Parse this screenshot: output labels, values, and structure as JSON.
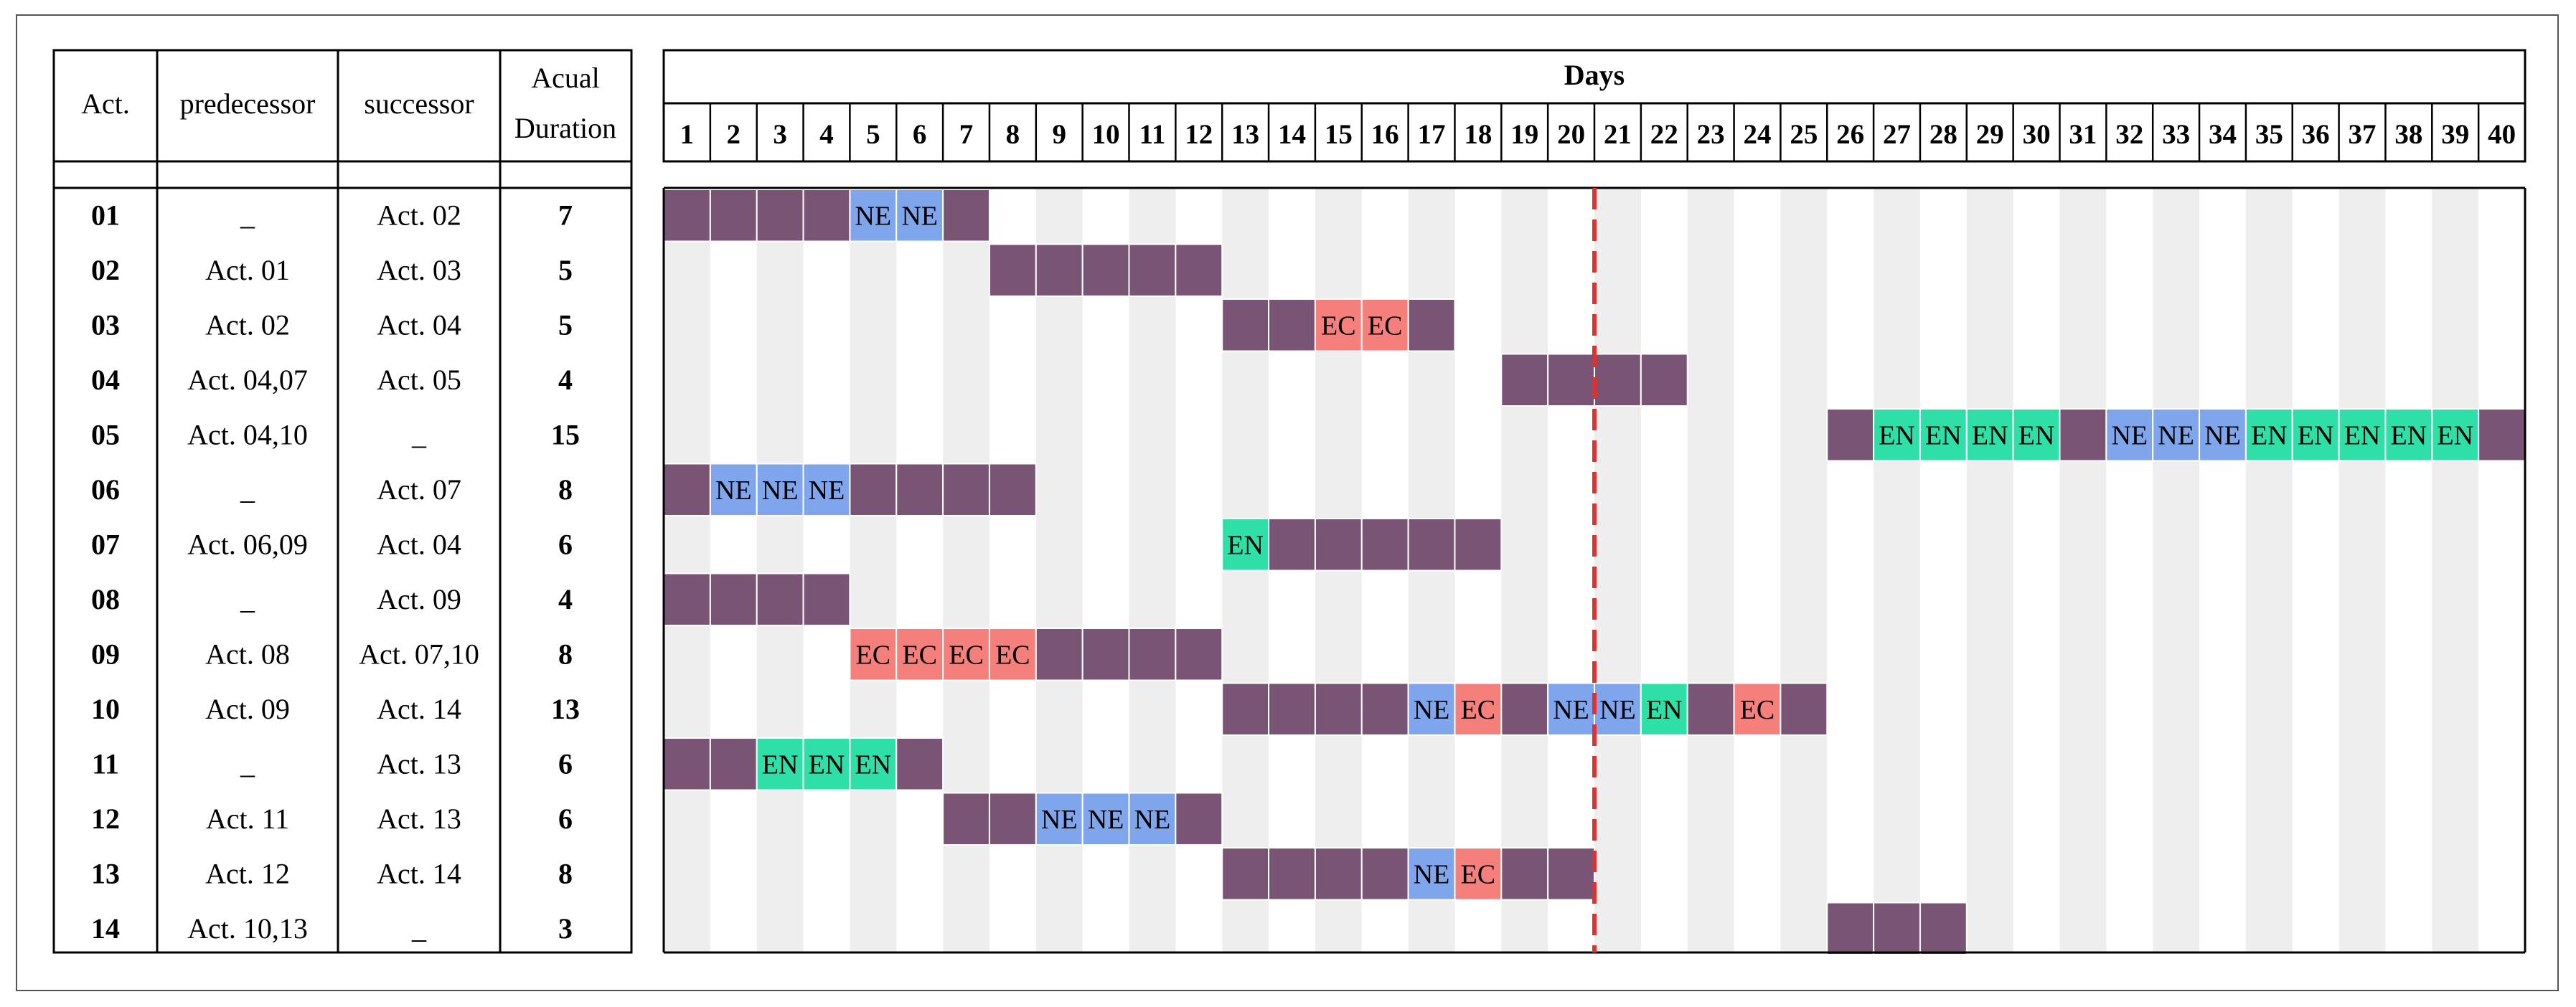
{
  "table": {
    "columns": [
      "Act.",
      "predecessor",
      "successor",
      "Acual",
      "Duration"
    ],
    "rows": [
      {
        "act": "01",
        "pred": "_",
        "succ": "Act. 02",
        "dur": "7"
      },
      {
        "act": "02",
        "pred": "Act. 01",
        "succ": "Act. 03",
        "dur": "5"
      },
      {
        "act": "03",
        "pred": "Act. 02",
        "succ": "Act. 04",
        "dur": "5"
      },
      {
        "act": "04",
        "pred": "Act. 04,07",
        "succ": "Act. 05",
        "dur": "4"
      },
      {
        "act": "05",
        "pred": "Act. 04,10",
        "succ": "_",
        "dur": "15"
      },
      {
        "act": "06",
        "pred": "_",
        "succ": "Act. 07",
        "dur": "8"
      },
      {
        "act": "07",
        "pred": "Act. 06,09",
        "succ": "Act. 04",
        "dur": "6"
      },
      {
        "act": "08",
        "pred": "_",
        "succ": "Act. 09",
        "dur": "4"
      },
      {
        "act": "09",
        "pred": "Act. 08",
        "succ": "Act. 07,10",
        "dur": "8"
      },
      {
        "act": "10",
        "pred": "Act. 09",
        "succ": "Act. 14",
        "dur": "13"
      },
      {
        "act": "11",
        "pred": "_",
        "succ": "Act. 13",
        "dur": "6"
      },
      {
        "act": "12",
        "pred": "Act. 11",
        "succ": "Act. 13",
        "dur": "6"
      },
      {
        "act": "13",
        "pred": "Act. 12",
        "succ": "Act. 14",
        "dur": "8"
      },
      {
        "act": "14",
        "pred": "Act. 10,13",
        "succ": "_",
        "dur": "3"
      }
    ]
  },
  "chart_data": {
    "type": "table",
    "title": "Days",
    "days": [
      1,
      2,
      3,
      4,
      5,
      6,
      7,
      8,
      9,
      10,
      11,
      12,
      13,
      14,
      15,
      16,
      17,
      18,
      19,
      20,
      21,
      22,
      23,
      24,
      25,
      26,
      27,
      28,
      29,
      30,
      31,
      32,
      33,
      34,
      35,
      36,
      37,
      38,
      39,
      40
    ],
    "current_day_marker": 20,
    "legend_codes": {
      "NE": "#7fa6ec",
      "EC": "#f47f7b",
      "EN": "#2ee0a8",
      "work": "#7a5475"
    },
    "colors": {
      "work": "#7a5475",
      "NE": "#7fa6ec",
      "EC": "#f47f7b",
      "EN": "#2ee0a8",
      "stripe": "#eeeeee",
      "marker": "#e3302e"
    },
    "activities": [
      {
        "act": "01",
        "cells": [
          [
            1,
            "W"
          ],
          [
            2,
            "W"
          ],
          [
            3,
            "W"
          ],
          [
            4,
            "W"
          ],
          [
            5,
            "NE"
          ],
          [
            6,
            "NE"
          ],
          [
            7,
            "W"
          ]
        ]
      },
      {
        "act": "02",
        "cells": [
          [
            8,
            "W"
          ],
          [
            9,
            "W"
          ],
          [
            10,
            "W"
          ],
          [
            11,
            "W"
          ],
          [
            12,
            "W"
          ]
        ]
      },
      {
        "act": "03",
        "cells": [
          [
            13,
            "W"
          ],
          [
            14,
            "W"
          ],
          [
            15,
            "EC"
          ],
          [
            16,
            "EC"
          ],
          [
            17,
            "W"
          ]
        ]
      },
      {
        "act": "04",
        "cells": [
          [
            19,
            "W"
          ],
          [
            20,
            "W"
          ],
          [
            21,
            "W"
          ],
          [
            22,
            "W"
          ]
        ]
      },
      {
        "act": "05",
        "cells": [
          [
            26,
            "W"
          ],
          [
            27,
            "EN"
          ],
          [
            28,
            "EN"
          ],
          [
            29,
            "EN"
          ],
          [
            30,
            "EN"
          ],
          [
            31,
            "W"
          ],
          [
            32,
            "NE"
          ],
          [
            33,
            "NE"
          ],
          [
            34,
            "NE"
          ],
          [
            35,
            "EN"
          ],
          [
            36,
            "EN"
          ],
          [
            37,
            "EN"
          ],
          [
            38,
            "EN"
          ],
          [
            39,
            "EN"
          ],
          [
            40,
            "W"
          ]
        ]
      },
      {
        "act": "06",
        "cells": [
          [
            1,
            "W"
          ],
          [
            2,
            "NE"
          ],
          [
            3,
            "NE"
          ],
          [
            4,
            "NE"
          ],
          [
            5,
            "W"
          ],
          [
            6,
            "W"
          ],
          [
            7,
            "W"
          ],
          [
            8,
            "W"
          ]
        ]
      },
      {
        "act": "07",
        "cells": [
          [
            13,
            "EN"
          ],
          [
            14,
            "W"
          ],
          [
            15,
            "W"
          ],
          [
            16,
            "W"
          ],
          [
            17,
            "W"
          ],
          [
            18,
            "W"
          ]
        ]
      },
      {
        "act": "08",
        "cells": [
          [
            1,
            "W"
          ],
          [
            2,
            "W"
          ],
          [
            3,
            "W"
          ],
          [
            4,
            "W"
          ]
        ]
      },
      {
        "act": "09",
        "cells": [
          [
            5,
            "EC"
          ],
          [
            6,
            "EC"
          ],
          [
            7,
            "EC"
          ],
          [
            8,
            "EC"
          ],
          [
            9,
            "W"
          ],
          [
            10,
            "W"
          ],
          [
            11,
            "W"
          ],
          [
            12,
            "W"
          ]
        ]
      },
      {
        "act": "10",
        "cells": [
          [
            13,
            "W"
          ],
          [
            14,
            "W"
          ],
          [
            15,
            "W"
          ],
          [
            16,
            "W"
          ],
          [
            17,
            "NE"
          ],
          [
            18,
            "EC"
          ],
          [
            19,
            "W"
          ],
          [
            20,
            "NE"
          ],
          [
            21,
            "NE"
          ],
          [
            22,
            "EN"
          ],
          [
            23,
            "W"
          ],
          [
            24,
            "EC"
          ],
          [
            25,
            "W"
          ]
        ]
      },
      {
        "act": "11",
        "cells": [
          [
            1,
            "W"
          ],
          [
            2,
            "W"
          ],
          [
            3,
            "EN"
          ],
          [
            4,
            "EN"
          ],
          [
            5,
            "EN"
          ],
          [
            6,
            "W"
          ]
        ]
      },
      {
        "act": "12",
        "cells": [
          [
            7,
            "W"
          ],
          [
            8,
            "W"
          ],
          [
            9,
            "NE"
          ],
          [
            10,
            "NE"
          ],
          [
            11,
            "NE"
          ],
          [
            12,
            "W"
          ]
        ]
      },
      {
        "act": "13",
        "cells": [
          [
            13,
            "W"
          ],
          [
            14,
            "W"
          ],
          [
            15,
            "W"
          ],
          [
            16,
            "W"
          ],
          [
            17,
            "NE"
          ],
          [
            18,
            "EC"
          ],
          [
            19,
            "W"
          ],
          [
            20,
            "W"
          ]
        ]
      },
      {
        "act": "14",
        "cells": [
          [
            26,
            "W"
          ],
          [
            27,
            "W"
          ],
          [
            28,
            "W"
          ]
        ]
      }
    ]
  }
}
